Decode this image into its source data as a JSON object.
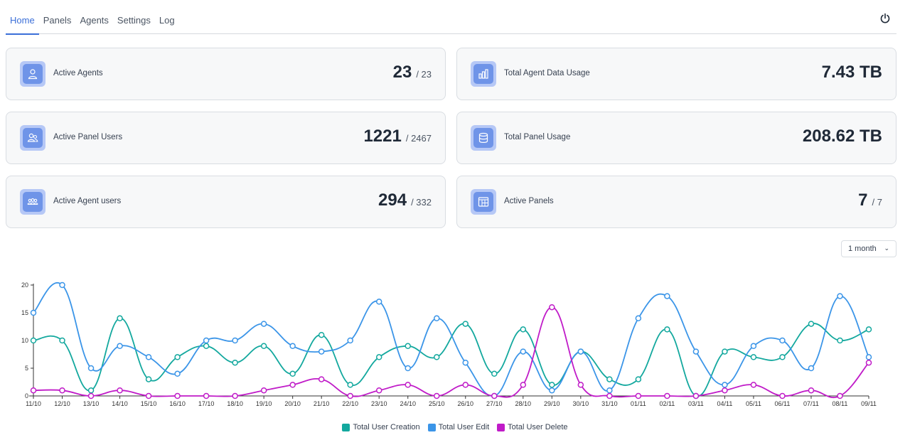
{
  "nav": {
    "tabs": [
      "Home",
      "Panels",
      "Agents",
      "Settings",
      "Log"
    ],
    "active_tab": "Home",
    "power_icon": "power-icon"
  },
  "stats": [
    {
      "label": "Active Agents",
      "value": "23",
      "total": "/ 23",
      "icon": "user-icon"
    },
    {
      "label": "Total Agent Data Usage",
      "value": "7.43 TB",
      "total": "",
      "icon": "bar-chart-icon"
    },
    {
      "label": "Active Panel Users",
      "value": "1221",
      "total": "/ 2467",
      "icon": "users-icon"
    },
    {
      "label": "Total Panel Usage",
      "value": "208.62 TB",
      "total": "",
      "icon": "database-icon"
    },
    {
      "label": "Active Agent users",
      "value": "294",
      "total": "/ 332",
      "icon": "group-icon"
    },
    {
      "label": "Active Panels",
      "value": "7",
      "total": "/ 7",
      "icon": "panel-grid-icon"
    }
  ],
  "range_select": {
    "value": "1 month"
  },
  "chart_data": {
    "type": "line",
    "categories": [
      "11/10",
      "12/10",
      "13/10",
      "14/10",
      "15/10",
      "16/10",
      "17/10",
      "18/10",
      "19/10",
      "20/10",
      "21/10",
      "22/10",
      "23/10",
      "24/10",
      "25/10",
      "26/10",
      "27/10",
      "28/10",
      "29/10",
      "30/10",
      "31/10",
      "01/11",
      "02/11",
      "03/11",
      "04/11",
      "05/11",
      "06/11",
      "07/11",
      "08/11",
      "09/11"
    ],
    "ylim": [
      0,
      20
    ],
    "yticks": [
      0,
      5,
      10,
      15,
      20
    ],
    "series": [
      {
        "name": "Total User Creation",
        "color": "#13a89e",
        "values": [
          10,
          10,
          1,
          14,
          3,
          7,
          9,
          6,
          9,
          4,
          11,
          2,
          7,
          9,
          7,
          13,
          4,
          12,
          2,
          8,
          3,
          3,
          12,
          0,
          8,
          7,
          7,
          13,
          10,
          12
        ]
      },
      {
        "name": "Total User Edit",
        "color": "#3b95e8",
        "values": [
          15,
          20,
          5,
          9,
          7,
          4,
          10,
          10,
          13,
          9,
          8,
          10,
          17,
          5,
          14,
          6,
          0,
          8,
          1,
          8,
          1,
          14,
          18,
          8,
          2,
          9,
          10,
          5,
          18,
          7
        ]
      },
      {
        "name": "Total User Delete",
        "color": "#c01bc8",
        "values": [
          1,
          1,
          0,
          1,
          0,
          0,
          0,
          0,
          1,
          2,
          3,
          0,
          1,
          2,
          0,
          2,
          0,
          2,
          16,
          2,
          0,
          0,
          0,
          0,
          1,
          2,
          0,
          1,
          0,
          6
        ]
      }
    ]
  }
}
